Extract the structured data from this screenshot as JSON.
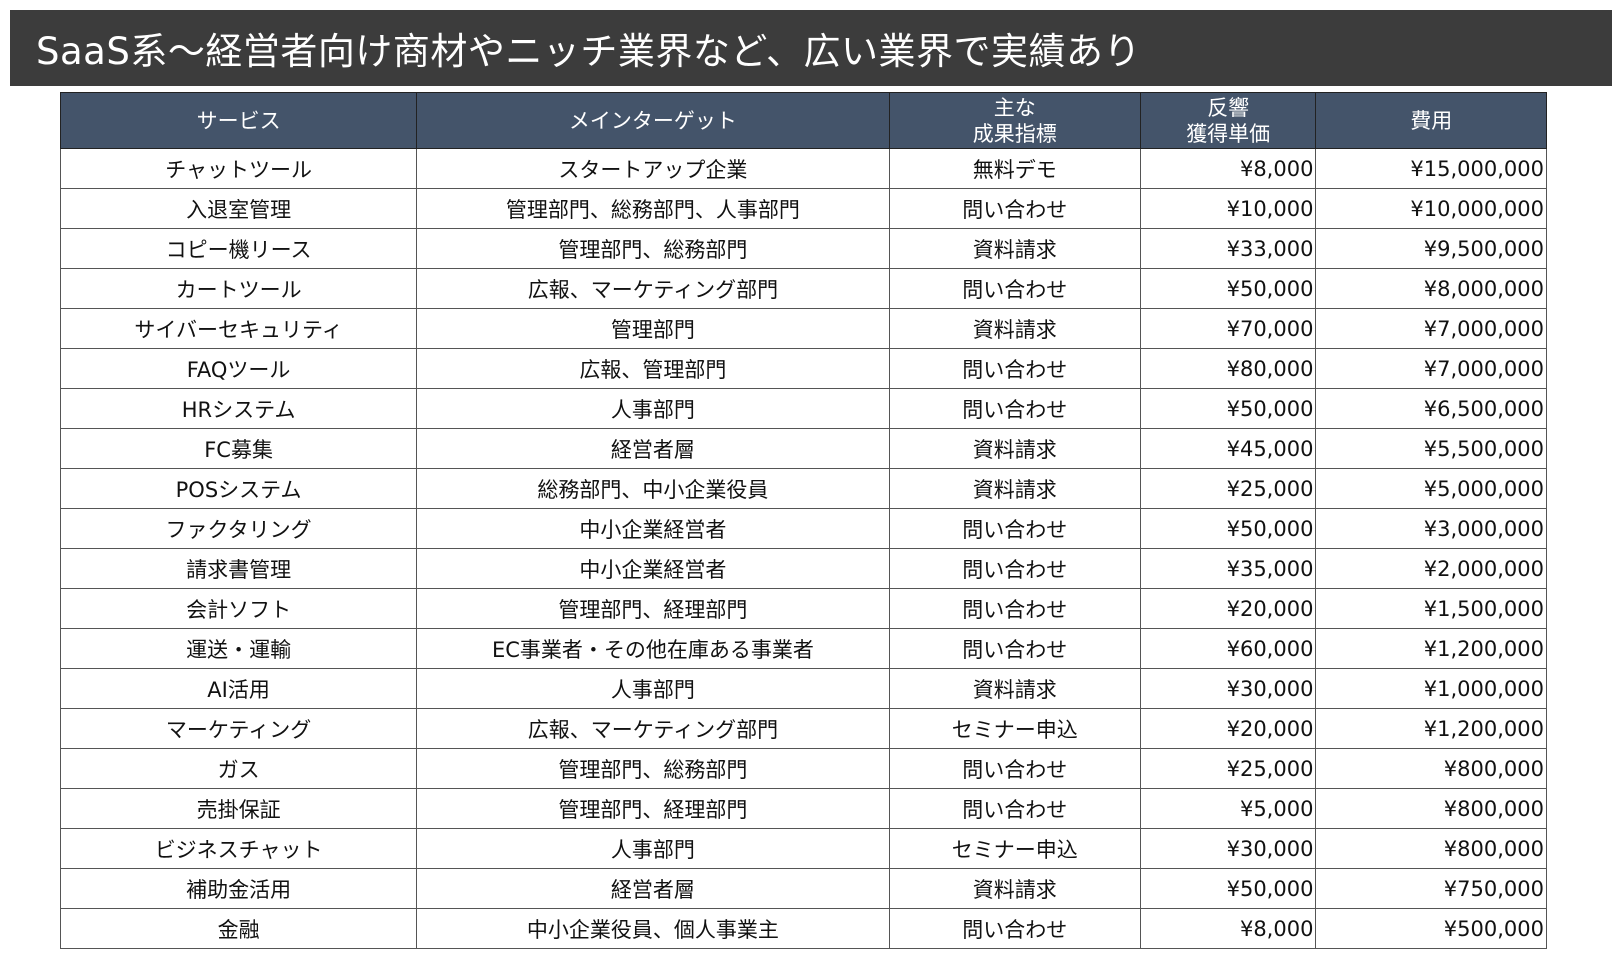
{
  "title": "SaaS系～経営者向け商材やニッチ業界など、広い業界で実績あり",
  "colors": {
    "title_bar": "#3c3c3c",
    "header_bg": "#44546a",
    "header_text": "#ffffff"
  },
  "table": {
    "headers": [
      {
        "lines": [
          "サービス"
        ]
      },
      {
        "lines": [
          "メインターゲット"
        ]
      },
      {
        "lines": [
          "主な",
          "成果指標"
        ]
      },
      {
        "lines": [
          "反響",
          "獲得単価"
        ]
      },
      {
        "lines": [
          "費用"
        ]
      }
    ],
    "rows": [
      [
        "チャットツール",
        "スタートアップ企業",
        "無料デモ",
        "¥8,000",
        "¥15,000,000"
      ],
      [
        "入退室管理",
        "管理部門、総務部門、人事部門",
        "問い合わせ",
        "¥10,000",
        "¥10,000,000"
      ],
      [
        "コピー機リース",
        "管理部門、総務部門",
        "資料請求",
        "¥33,000",
        "¥9,500,000"
      ],
      [
        "カートツール",
        "広報、マーケティング部門",
        "問い合わせ",
        "¥50,000",
        "¥8,000,000"
      ],
      [
        "サイバーセキュリティ",
        "管理部門",
        "資料請求",
        "¥70,000",
        "¥7,000,000"
      ],
      [
        "FAQツール",
        "広報、管理部門",
        "問い合わせ",
        "¥80,000",
        "¥7,000,000"
      ],
      [
        "HRシステム",
        "人事部門",
        "問い合わせ",
        "¥50,000",
        "¥6,500,000"
      ],
      [
        "FC募集",
        "経営者層",
        "資料請求",
        "¥45,000",
        "¥5,500,000"
      ],
      [
        "POSシステム",
        "総務部門、中小企業役員",
        "資料請求",
        "¥25,000",
        "¥5,000,000"
      ],
      [
        "ファクタリング",
        "中小企業経営者",
        "問い合わせ",
        "¥50,000",
        "¥3,000,000"
      ],
      [
        "請求書管理",
        "中小企業経営者",
        "問い合わせ",
        "¥35,000",
        "¥2,000,000"
      ],
      [
        "会計ソフト",
        "管理部門、経理部門",
        "問い合わせ",
        "¥20,000",
        "¥1,500,000"
      ],
      [
        "運送・運輸",
        "EC事業者・その他在庫ある事業者",
        "問い合わせ",
        "¥60,000",
        "¥1,200,000"
      ],
      [
        "AI活用",
        "人事部門",
        "資料請求",
        "¥30,000",
        "¥1,000,000"
      ],
      [
        "マーケティング",
        "広報、マーケティング部門",
        "セミナー申込",
        "¥20,000",
        "¥1,200,000"
      ],
      [
        "ガス",
        "管理部門、総務部門",
        "問い合わせ",
        "¥25,000",
        "¥800,000"
      ],
      [
        "売掛保証",
        "管理部門、経理部門",
        "問い合わせ",
        "¥5,000",
        "¥800,000"
      ],
      [
        "ビジネスチャット",
        "人事部門",
        "セミナー申込",
        "¥30,000",
        "¥800,000"
      ],
      [
        "補助金活用",
        "経営者層",
        "資料請求",
        "¥50,000",
        "¥750,000"
      ],
      [
        "金融",
        "中小企業役員、個人事業主",
        "問い合わせ",
        "¥8,000",
        "¥500,000"
      ]
    ]
  }
}
